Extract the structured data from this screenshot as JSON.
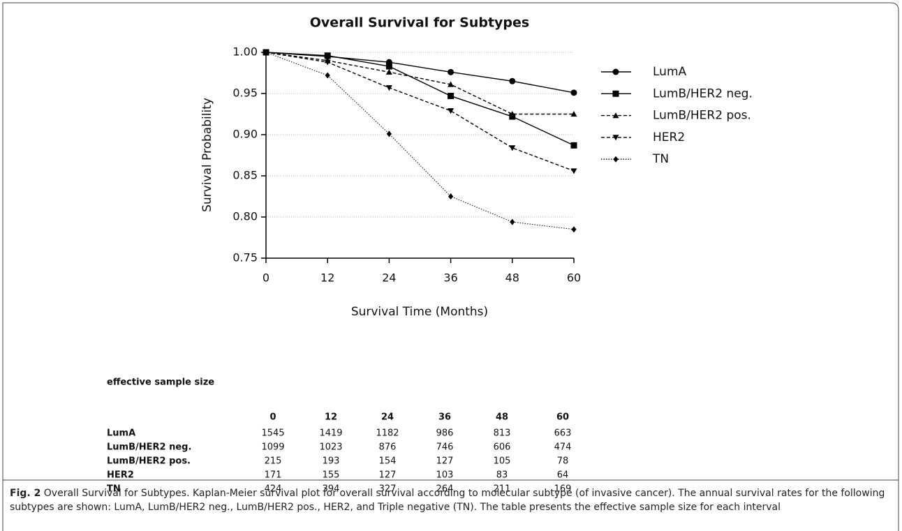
{
  "chart_data": {
    "type": "line",
    "title": "Overall Survival for Subtypes",
    "xlabel": "Survival Time (Months)",
    "ylabel": "Survival Probability",
    "x": [
      0,
      12,
      24,
      36,
      48,
      60
    ],
    "series": [
      {
        "name": "LumA",
        "color": "#000000",
        "marker": "circle",
        "dash": "solid",
        "values": [
          1.0,
          0.995,
          0.988,
          0.976,
          0.965,
          0.951
        ]
      },
      {
        "name": "LumB/HER2 neg.",
        "color": "#000000",
        "marker": "square",
        "dash": "solid",
        "values": [
          1.0,
          0.996,
          0.983,
          0.947,
          0.922,
          0.887
        ]
      },
      {
        "name": "LumB/HER2 pos.",
        "color": "#000000",
        "marker": "triangle-up",
        "dash": "dashed",
        "values": [
          1.0,
          0.99,
          0.976,
          0.961,
          0.925,
          0.925
        ]
      },
      {
        "name": "HER2",
        "color": "#000000",
        "marker": "triangle-down",
        "dash": "dashed",
        "values": [
          1.0,
          0.988,
          0.957,
          0.929,
          0.884,
          0.856
        ]
      },
      {
        "name": "TN",
        "color": "#000000",
        "marker": "diamond",
        "dash": "dotted",
        "values": [
          1.0,
          0.972,
          0.901,
          0.825,
          0.794,
          0.785
        ]
      }
    ],
    "xlim": [
      0,
      60
    ],
    "xticks": [
      0,
      12,
      24,
      36,
      48,
      60
    ],
    "ylim": [
      0.75,
      1.0
    ],
    "yticks": [
      0.75,
      {
        "value": 0.8,
        "label": "0.80"
      },
      0.85,
      {
        "value": 0.9,
        "label": "0.90"
      },
      0.95,
      {
        "value": 1.0,
        "label": "1.00"
      }
    ],
    "grid": true,
    "legend": "right"
  },
  "table": {
    "title": "effective sample size",
    "columns": [
      "0",
      "12",
      "24",
      "36",
      "48",
      "60"
    ],
    "rows": [
      {
        "label": "LumA",
        "values": [
          1545,
          1419,
          1182,
          986,
          813,
          663
        ]
      },
      {
        "label": "LumB/HER2 neg.",
        "values": [
          1099,
          1023,
          876,
          746,
          606,
          474
        ]
      },
      {
        "label": "LumB/HER2 pos.",
        "values": [
          215,
          193,
          154,
          127,
          105,
          78
        ]
      },
      {
        "label": "HER2",
        "values": [
          171,
          155,
          127,
          103,
          83,
          64
        ]
      },
      {
        "label": "TN",
        "values": [
          424,
          394,
          327,
          264,
          211,
          169
        ]
      }
    ]
  },
  "caption": {
    "label": "Fig. 2",
    "text": "Overall Survival for Subtypes. Kaplan-Meier survival plot for overall survival according to molecular subtype (of invasive cancer). The annual survival rates for the following subtypes are shown: LumA, LumB/HER2 neg., LumB/HER2 pos., HER2, and Triple negative (TN). The table presents the effective sample size for each interval"
  }
}
